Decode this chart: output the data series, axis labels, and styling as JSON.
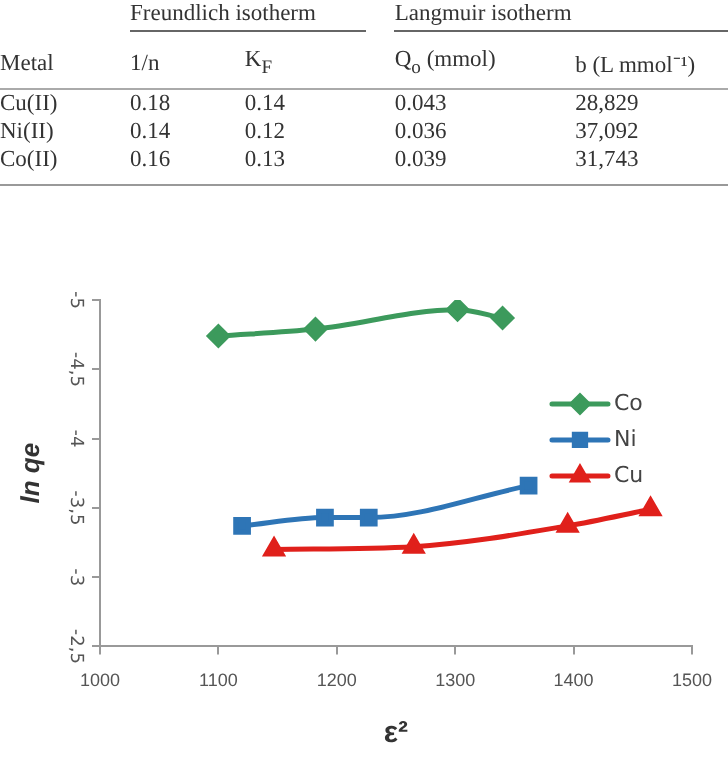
{
  "chart_data": [
    {
      "type": "other",
      "data_labels": true,
      "ylabel": "Metal",
      "annotations": [
        "Freundlich isotherm",
        "Langmuir isotherm"
      ],
      "categories": [
        "Cu(II)",
        "Ni(II)",
        "Co(II)"
      ],
      "series": [
        {
          "name": "1/n",
          "values": [
            0.18,
            0.14,
            0.16
          ]
        },
        {
          "name": "K$_{F}$",
          "values": [
            0.14,
            0.12,
            0.13
          ]
        },
        {
          "name": "Q$_{o}$ (mmol)",
          "values": [
            0.043,
            0.036,
            0.039
          ]
        },
        {
          "name": "b (L mmol⁻¹)",
          "values": [
            28829,
            37092,
            31743
          ],
          "value_labels": [
            "28,829",
            "37,092",
            "31,743"
          ]
        }
      ]
    },
    {
      "type": "line",
      "xlabel": "ε²",
      "ylabel": "ln qe",
      "xlim": [
        1000,
        1500
      ],
      "xticks": [
        1000,
        1100,
        1200,
        1300,
        1400,
        1500
      ],
      "ylim": [
        -2.5,
        -5
      ],
      "yticks": [
        {
          "value": -5,
          "label": "-5"
        },
        {
          "value": -4.5,
          "label": "-4,5"
        },
        {
          "value": -4,
          "label": "-4"
        },
        {
          "value": -3.5,
          "label": "-3,5"
        },
        {
          "value": -3,
          "label": "-3"
        },
        {
          "value": -2.5,
          "label": "-2,5"
        }
      ],
      "grid": false,
      "legend": "right",
      "series": [
        {
          "name": "Co",
          "color": "#3c9a5c",
          "marker": "diamond",
          "x": [
            1100,
            1182,
            1302,
            1340
          ],
          "values": [
            -4.74,
            -4.79,
            -4.93,
            -4.87
          ]
        },
        {
          "name": "Ni",
          "color": "#2e75b6",
          "marker": "square",
          "x": [
            1120,
            1190,
            1227,
            1362
          ],
          "values": [
            -3.37,
            -3.43,
            -3.43,
            -3.66
          ]
        },
        {
          "name": "Cu",
          "color": "#e0201b",
          "marker": "triangle",
          "x": [
            1147,
            1265,
            1395,
            1465
          ],
          "values": [
            -3.2,
            -3.22,
            -3.37,
            -3.49
          ]
        }
      ]
    }
  ]
}
